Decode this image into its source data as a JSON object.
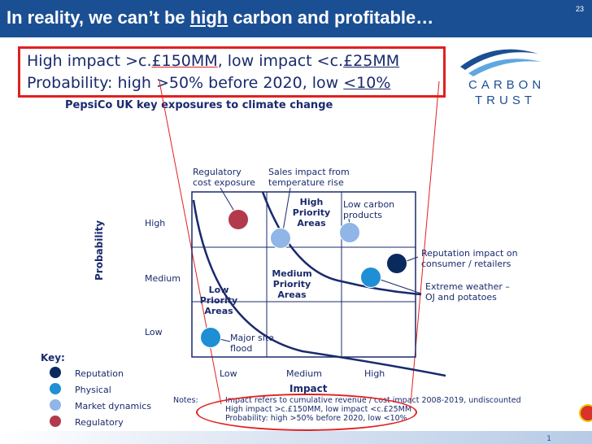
{
  "slide": {
    "title_pre": "In reality, we can’t be ",
    "title_emph": "high",
    "title_post": " carbon and profitable…",
    "number": "23",
    "footer_number": "1"
  },
  "callout": {
    "line1_pre": "High impact >c.",
    "line1_emph": "£150MM",
    "line1_mid": ", low impact <c.",
    "line1_emph2": "£25MM",
    "line2_pre": "Probability: high >50% before 2020, low ",
    "line2_emph": "<10%"
  },
  "logo": {
    "word1": "CARBON",
    "word2": "TRUST"
  },
  "matrix": {
    "subtitle": "PepsiCo UK key exposures to climate change",
    "ylabel": "Probability",
    "xlabel": "Impact",
    "y_ticks": [
      "High",
      "Medium",
      "Low"
    ],
    "x_ticks": [
      "Low",
      "Medium",
      "High"
    ],
    "areas": {
      "high": [
        "High",
        "Priority",
        "Areas"
      ],
      "medium": [
        "Medium",
        "Priority",
        "Areas"
      ],
      "low": [
        "Low",
        "Priority",
        "Areas"
      ]
    },
    "labels": {
      "regulatory": [
        "Regulatory",
        "cost exposure"
      ],
      "sales": [
        "Sales impact from",
        "temperature rise"
      ],
      "lowcarbon": [
        "Low carbon",
        "products"
      ],
      "reputation": [
        "Reputation impact on",
        "consumer / retailers"
      ],
      "weather": [
        "Extreme weather –",
        "OJ and potatoes"
      ],
      "flood": [
        "Major site",
        "flood"
      ]
    }
  },
  "key": {
    "title": "Key:",
    "items": [
      {
        "label": "Reputation",
        "color": "#0a2a5e"
      },
      {
        "label": "Physical",
        "color": "#1e8fd5"
      },
      {
        "label": "Market dynamics",
        "color": "#8fb6e6"
      },
      {
        "label": "Regulatory",
        "color": "#b23a4d"
      }
    ]
  },
  "notes": {
    "label": "Notes:",
    "lines": [
      "Impact refers to cumulative revenue / cost impact 2008-2019, undiscounted",
      "High impact >c.£150MM, low impact <c.£25MM",
      "Probability: high >50% before 2020, low <10%"
    ]
  },
  "colors": {
    "title_bar": "#1b4f93",
    "accent_red": "#e02020",
    "text_navy": "#1a2a6c"
  }
}
